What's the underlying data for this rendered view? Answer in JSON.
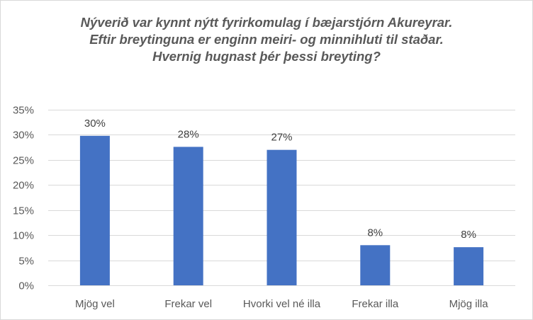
{
  "chart_data": {
    "type": "bar",
    "title_lines": [
      "Nýverið var kynnt nýtt fyrirkomulag í bæjarstjórn Akureyrar.",
      "Eftir breytinguna er enginn meiri- og minnihluti til staðar.",
      "Hvernig hugnast þér þessi breyting?"
    ],
    "categories": [
      "Mjög vel",
      "Frekar vel",
      "Hvorki vel né illa",
      "Frekar illa",
      "Mjög illa"
    ],
    "values": [
      29.8,
      27.6,
      27.0,
      8.0,
      7.6
    ],
    "data_labels": [
      "30%",
      "28%",
      "27%",
      "8%",
      "8%"
    ],
    "y_ticks": [
      "0%",
      "5%",
      "10%",
      "15%",
      "20%",
      "25%",
      "30%",
      "35%"
    ],
    "ylim": [
      0,
      35
    ],
    "ytick_step": 5,
    "grid": true,
    "legend": "none",
    "xlabel": "",
    "ylabel": "",
    "bar_color": "#4472c4",
    "grid_color": "#d9d9d9"
  }
}
